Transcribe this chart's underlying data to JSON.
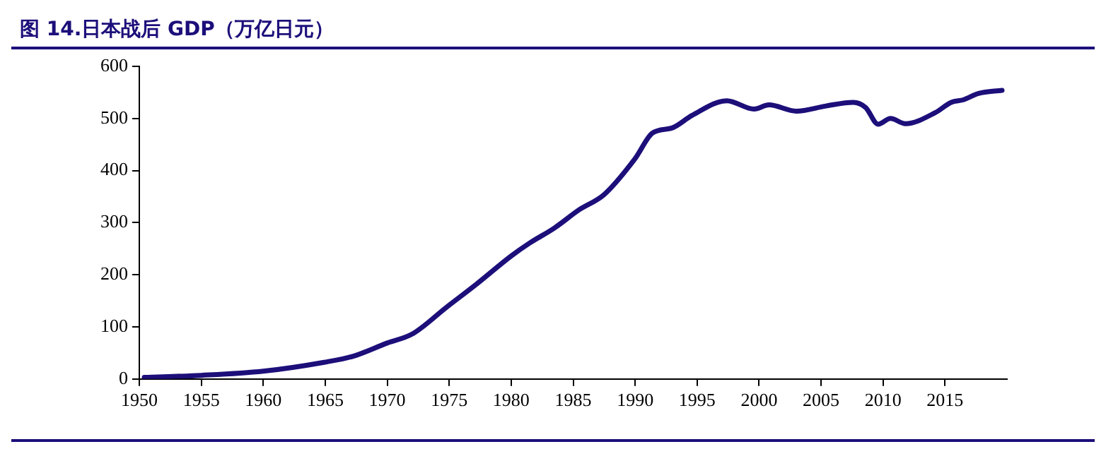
{
  "chart_data": {
    "type": "line",
    "title": "图 14.日本战后 GDP（万亿日元）",
    "x": [
      1950.4,
      1955,
      1960,
      1964.9,
      1967.3,
      1970,
      1972,
      1974.8,
      1977.2,
      1980,
      1981.5,
      1983.5,
      1985.5,
      1987.5,
      1990,
      1991.4,
      1993,
      1994.6,
      1997.4,
      1999.6,
      2000.8,
      2003,
      2005.4,
      2007.6,
      2008.6,
      2009.6,
      2010.6,
      2011.8,
      2014.2,
      2015.5,
      2016.5,
      2017.7,
      2019.6
    ],
    "series": [
      {
        "color": "#1c0f7a",
        "values": [
          3,
          7,
          15,
          32,
          44,
          69,
          86,
          138,
          182,
          236,
          261,
          290,
          325,
          354,
          423,
          472,
          482,
          506,
          534,
          518,
          526,
          514,
          524,
          531,
          521,
          489,
          500,
          490,
          511,
          531,
          536,
          548,
          554
        ]
      }
    ],
    "xlim": [
      1950,
      2020
    ],
    "xticks": [
      1950,
      1955,
      1960,
      1965,
      1970,
      1975,
      1980,
      1985,
      1990,
      1995,
      2000,
      2005,
      2010,
      2015
    ],
    "ylim": [
      0,
      600
    ],
    "yticks": [
      0,
      100,
      200,
      300,
      400,
      500,
      600
    ],
    "grid": false,
    "legend": false,
    "marker": "none",
    "line_style": "solid"
  }
}
